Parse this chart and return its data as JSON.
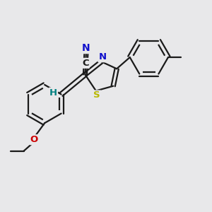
{
  "background_color": "#e8e8ea",
  "atom_colors": {
    "N": "#1010cc",
    "S": "#b8b800",
    "O": "#cc0000",
    "C": "#1a1a1a",
    "H": "#008080"
  },
  "figsize": [
    3.0,
    3.0
  ],
  "dpi": 100,
  "bond_lw": 1.6,
  "ring_r": 1.0
}
